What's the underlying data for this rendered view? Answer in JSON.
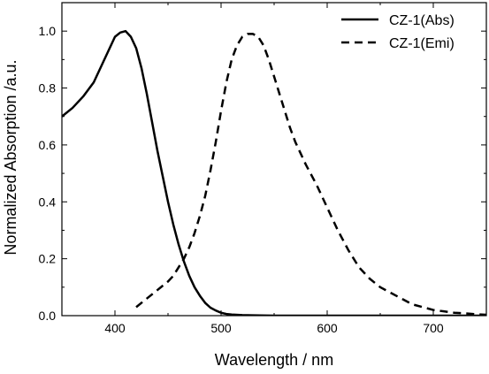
{
  "chart_data": {
    "type": "line",
    "xlabel": "Wavelength / nm",
    "ylabel": "Normalized Absorption /a.u.",
    "xlim": [
      350,
      750
    ],
    "ylim": [
      0.0,
      1.1
    ],
    "x_ticks": [
      400,
      500,
      600,
      700
    ],
    "y_ticks": [
      0.0,
      0.2,
      0.4,
      0.6,
      0.8,
      1.0
    ],
    "x_tick_labels": [
      "400",
      "500",
      "600",
      "700"
    ],
    "y_tick_labels": [
      "0.0",
      "0.2",
      "0.4",
      "0.6",
      "0.8",
      "1.0"
    ],
    "grid": false,
    "legend_position": "top-right",
    "series": [
      {
        "name": "CZ-1(Abs)",
        "style": "solid",
        "color": "#000000",
        "x": [
          350,
          360,
          370,
          380,
          390,
          395,
          400,
          405,
          410,
          415,
          420,
          425,
          430,
          435,
          440,
          445,
          450,
          455,
          460,
          465,
          470,
          475,
          480,
          485,
          490,
          495,
          500,
          505,
          510,
          520,
          530,
          550,
          600,
          650,
          700,
          750
        ],
        "y": [
          0.7,
          0.73,
          0.77,
          0.82,
          0.9,
          0.94,
          0.98,
          0.995,
          1.0,
          0.98,
          0.94,
          0.87,
          0.78,
          0.68,
          0.58,
          0.49,
          0.4,
          0.32,
          0.25,
          0.19,
          0.14,
          0.1,
          0.07,
          0.045,
          0.028,
          0.018,
          0.01,
          0.006,
          0.004,
          0.002,
          0.001,
          0.0,
          0.0,
          0.0,
          0.0,
          0.0
        ]
      },
      {
        "name": "CZ-1(Emi)",
        "style": "dashed",
        "color": "#000000",
        "x": [
          420,
          430,
          440,
          450,
          455,
          460,
          465,
          470,
          475,
          480,
          485,
          490,
          495,
          500,
          505,
          510,
          515,
          520,
          525,
          530,
          535,
          540,
          545,
          550,
          555,
          560,
          565,
          570,
          575,
          580,
          590,
          600,
          610,
          620,
          630,
          640,
          650,
          660,
          670,
          680,
          690,
          700,
          710,
          720,
          730,
          740,
          750
        ],
        "y": [
          0.03,
          0.06,
          0.09,
          0.12,
          0.14,
          0.17,
          0.2,
          0.24,
          0.29,
          0.35,
          0.42,
          0.51,
          0.61,
          0.72,
          0.82,
          0.9,
          0.95,
          0.98,
          0.99,
          0.99,
          0.98,
          0.95,
          0.9,
          0.84,
          0.78,
          0.72,
          0.66,
          0.61,
          0.57,
          0.53,
          0.46,
          0.38,
          0.3,
          0.23,
          0.17,
          0.13,
          0.1,
          0.08,
          0.06,
          0.04,
          0.03,
          0.02,
          0.015,
          0.01,
          0.008,
          0.005,
          0.003
        ]
      }
    ]
  }
}
